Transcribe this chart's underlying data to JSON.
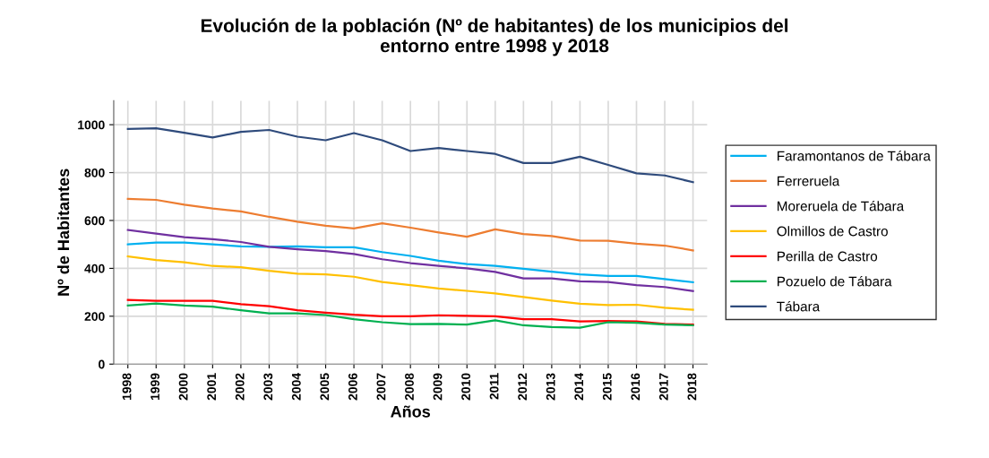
{
  "chart_data": {
    "type": "line",
    "title": "Evolución de la población (Nº de habitantes) de los municipios del\nentorno entre 1998 y 2018",
    "xlabel": "Años",
    "ylabel": "Nº de Habitantes",
    "categories": [
      "1998",
      "1999",
      "2000",
      "2001",
      "2002",
      "2003",
      "2004",
      "2005",
      "2006",
      "2007",
      "2008",
      "2009",
      "2010",
      "2011",
      "2012",
      "2013",
      "2014",
      "2015",
      "2016",
      "2017",
      "2018"
    ],
    "ylim": [
      0,
      1100
    ],
    "yticks": [
      0,
      200,
      400,
      600,
      800,
      1000
    ],
    "grid": true,
    "legend": "right",
    "marker": "none",
    "line_style": "solid",
    "series": [
      {
        "name": "Faramontanos de Tábara",
        "color": "#00b0f0",
        "values": [
          500,
          508,
          508,
          500,
          492,
          490,
          492,
          488,
          488,
          468,
          452,
          432,
          418,
          410,
          398,
          386,
          375,
          368,
          368,
          355,
          342
        ]
      },
      {
        "name": "Ferreruela",
        "color": "#ed7d31",
        "values": [
          690,
          686,
          666,
          650,
          638,
          615,
          595,
          578,
          567,
          588,
          570,
          550,
          532,
          563,
          543,
          535,
          516,
          515,
          503,
          495,
          475
        ]
      },
      {
        "name": "Moreruela de Tábara",
        "color": "#7030a0",
        "values": [
          560,
          545,
          530,
          522,
          510,
          490,
          480,
          472,
          460,
          438,
          422,
          410,
          400,
          385,
          358,
          358,
          346,
          343,
          330,
          322,
          305
        ]
      },
      {
        "name": "Olmillos de Castro",
        "color": "#ffc000",
        "values": [
          450,
          435,
          425,
          410,
          405,
          390,
          378,
          375,
          365,
          343,
          330,
          316,
          306,
          295,
          280,
          265,
          252,
          247,
          248,
          235,
          227
        ]
      },
      {
        "name": "Perilla de Castro",
        "color": "#ff0000",
        "values": [
          268,
          264,
          264,
          264,
          250,
          242,
          225,
          215,
          206,
          200,
          200,
          204,
          202,
          200,
          188,
          188,
          178,
          180,
          178,
          168,
          165
        ]
      },
      {
        "name": "Pozuelo de Tábara",
        "color": "#00b050",
        "values": [
          245,
          253,
          245,
          240,
          225,
          212,
          212,
          205,
          188,
          175,
          167,
          168,
          165,
          183,
          162,
          155,
          152,
          175,
          173,
          165,
          162
        ]
      },
      {
        "name": "Tábara",
        "color": "#2f4b7c",
        "values": [
          982,
          985,
          966,
          947,
          970,
          978,
          950,
          935,
          965,
          935,
          890,
          903,
          890,
          878,
          840,
          840,
          866,
          832,
          797,
          788,
          760
        ]
      }
    ]
  }
}
